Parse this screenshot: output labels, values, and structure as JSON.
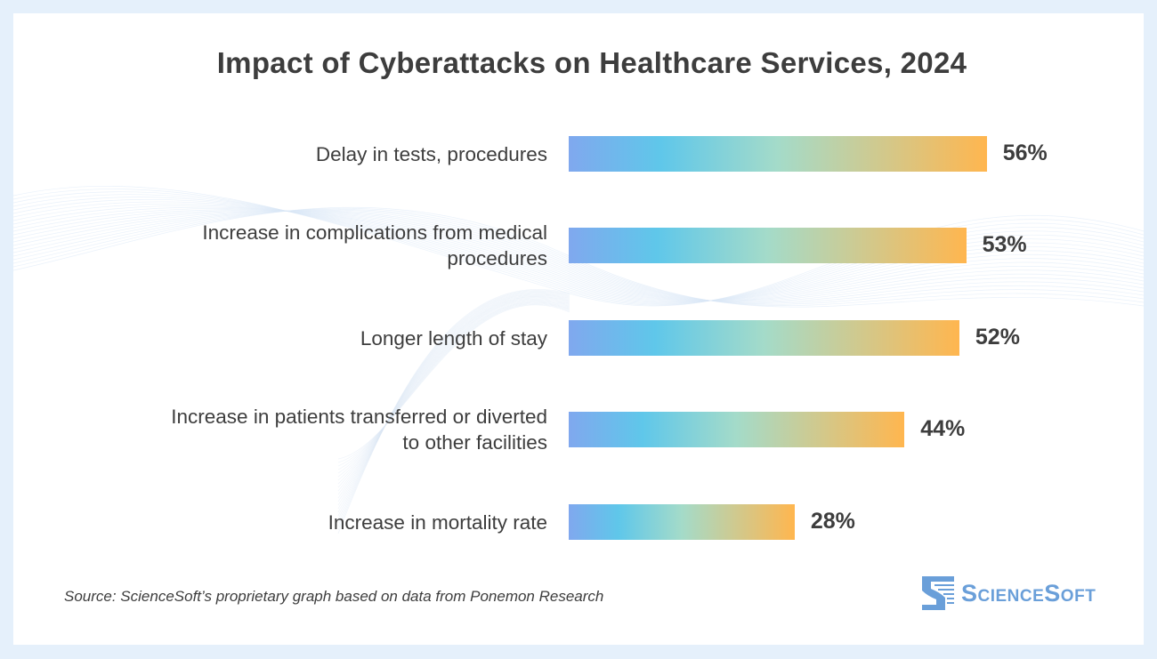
{
  "chart_data": {
    "type": "bar",
    "orientation": "horizontal",
    "title": "Impact of Cyberattacks on Healthcare Services, 2024",
    "categories": [
      [
        "Delay in tests, procedures"
      ],
      [
        "Increase in complications from medical",
        "procedures"
      ],
      [
        "Longer length of stay"
      ],
      [
        "Increase in patients transferred or diverted",
        "to other facilities"
      ],
      [
        "Increase in mortality rate"
      ]
    ],
    "values": [
      56,
      53,
      52,
      44,
      28
    ],
    "value_labels": [
      "56%",
      "53%",
      "52%",
      "44%",
      "28%"
    ],
    "unit": "%",
    "grid": false,
    "bar_gradient": [
      "#80a8ee",
      "#5fc7ea",
      "#a4dbc9",
      "#ffb64f"
    ]
  },
  "footer": {
    "source": "Source: ScienceSoft’s proprietary graph based on data from Ponemon Research",
    "logo_text": "ScienceSoft"
  },
  "colors": {
    "background": "#e5f0fb",
    "text": "#3d3d3d",
    "logo": "#6a9fd9"
  }
}
